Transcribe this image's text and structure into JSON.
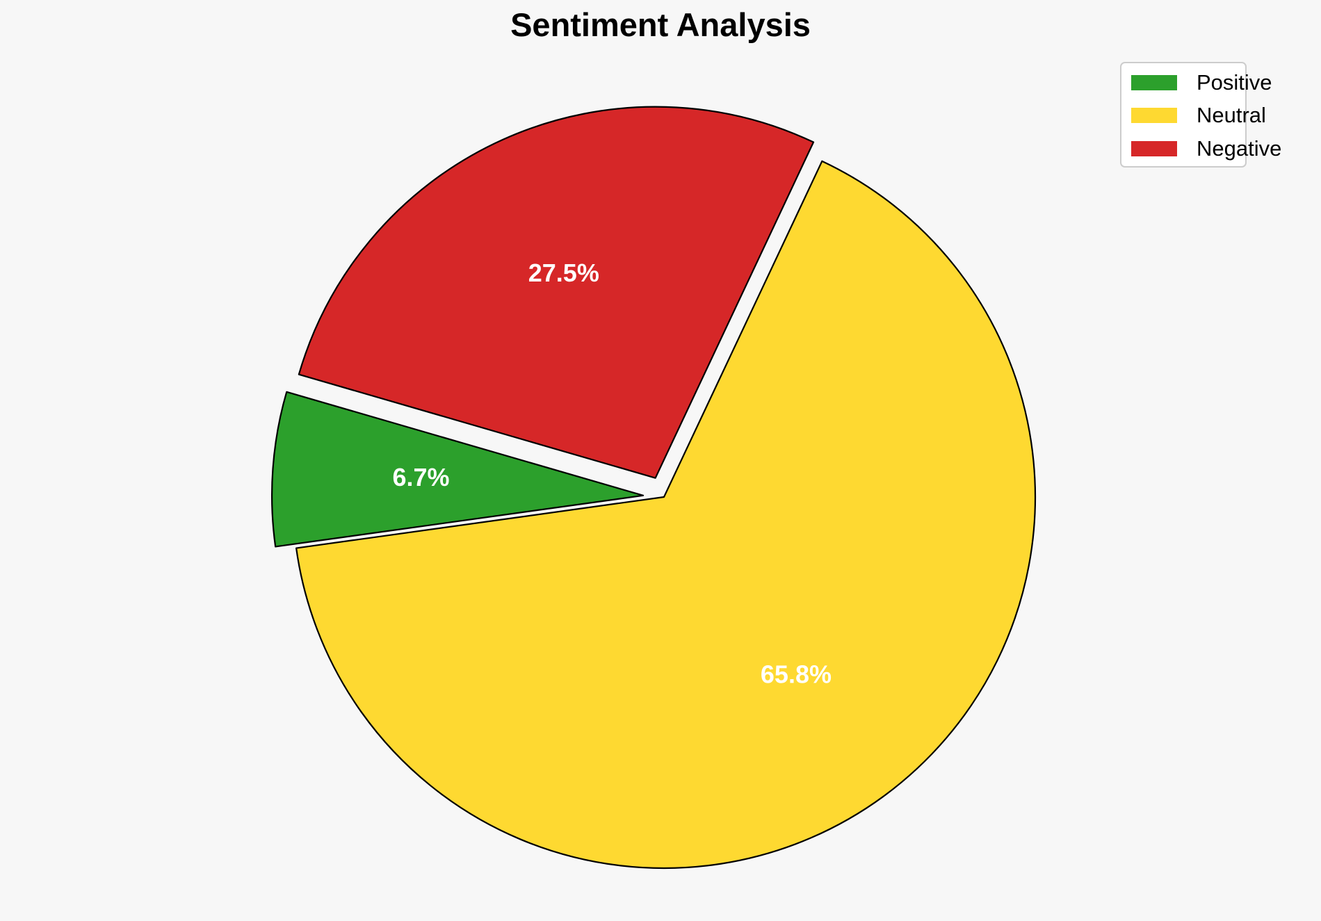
{
  "chart_data": {
    "type": "pie",
    "title": "Sentiment Analysis",
    "categories": [
      "Positive",
      "Neutral",
      "Negative"
    ],
    "values": [
      6.7,
      65.8,
      27.5
    ],
    "labels": [
      "6.7%",
      "65.8%",
      "27.5%"
    ],
    "colors": [
      "#2ca02c",
      "#fed931",
      "#d62728"
    ],
    "exploded": [
      true,
      false,
      true
    ],
    "legend_position": "top-right",
    "start_angle_degrees": 163.8,
    "direction": "counterclockwise"
  },
  "legend": {
    "items": [
      {
        "label": "Positive",
        "color": "#2ca02c"
      },
      {
        "label": "Neutral",
        "color": "#fed931"
      },
      {
        "label": "Negative",
        "color": "#d62728"
      }
    ]
  }
}
